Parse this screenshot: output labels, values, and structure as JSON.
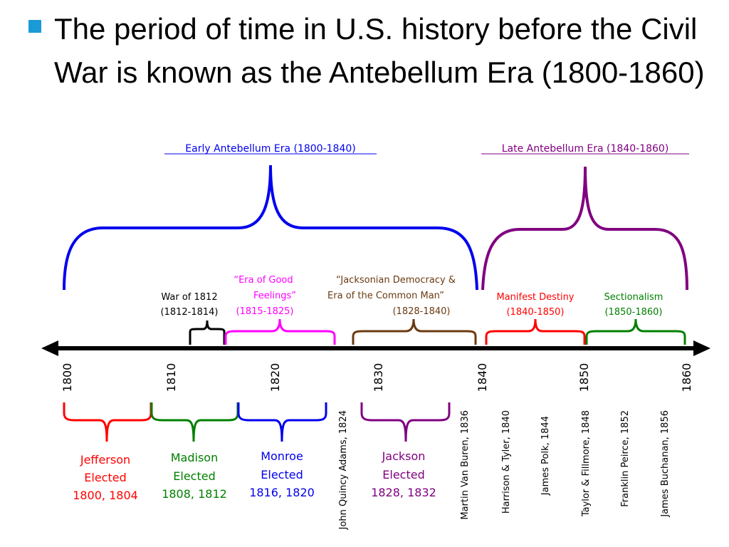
{
  "slide": {
    "bullet": "The period of time in U.S. history before the Civil War is known as the Antebellum Era (1800-1860)"
  },
  "eras": {
    "early": "Early Antebellum Era (1800-1840)",
    "late": "Late Antebellum Era (1840-1860)"
  },
  "periods": {
    "war1812": {
      "line1": "War of 1812",
      "line2": "(1812-1814)"
    },
    "good_feelings": {
      "line1": "“Era of Good",
      "line2": "Feelings”",
      "line3": "(1815-1825)"
    },
    "jacksonian": {
      "line1": "“Jacksonian Democracy &",
      "line2": "Era of the Common Man”",
      "line3": "(1828-1840)"
    },
    "manifest": {
      "line1": "Manifest Destiny",
      "line2": "(1840-1850)"
    },
    "sectionalism": {
      "line1": "Sectionalism",
      "line2": "(1850-1860)"
    }
  },
  "years": [
    "1800",
    "1810",
    "1820",
    "1830",
    "1840",
    "1850",
    "1860"
  ],
  "presidents": {
    "jefferson": {
      "name": "Jefferson",
      "status": "Elected",
      "years": "1800, 1804"
    },
    "madison": {
      "name": "Madison",
      "status": "Elected",
      "years": "1808, 1812"
    },
    "monroe": {
      "name": "Monroe",
      "status": "Elected",
      "years": "1816, 1820"
    },
    "jackson": {
      "name": "Jackson",
      "status": "Elected",
      "years": "1828, 1832"
    }
  },
  "vertical_presidents": [
    "John Quincy Adams, 1824",
    "Martin Van Buren, 1836",
    "Harrison & Tyler, 1840",
    "James Polk, 1844",
    "Taylor & Fillmore, 1848",
    "Franklin Peirce, 1852",
    "James Buchanan, 1856"
  ],
  "colors": {
    "bullet": "#1a9ad6",
    "early_era": "#0000ee",
    "late_era": "#800080",
    "war": "#000000",
    "good_feelings": "#ff00ff",
    "jacksonian": "#6b3a10",
    "manifest": "#ff0000",
    "sectionalism": "#008000",
    "jefferson": "#ff0000",
    "madison": "#008000",
    "monroe": "#0000ee",
    "jackson": "#800080"
  }
}
